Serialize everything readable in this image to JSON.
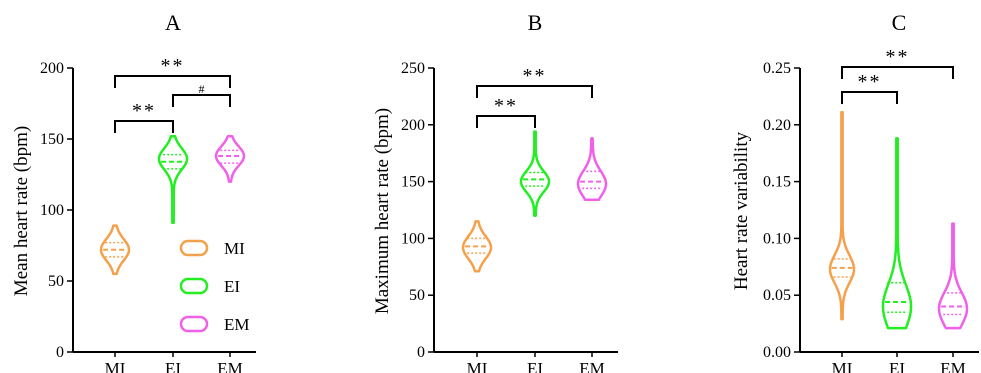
{
  "colors": {
    "MI": "#F5A04A",
    "EI": "#22EE22",
    "EM": "#F060E8",
    "axis": "#000000"
  },
  "legend": [
    {
      "label": "MI",
      "color": "#F5A04A"
    },
    {
      "label": "EI",
      "color": "#22EE22"
    },
    {
      "label": "EM",
      "color": "#F060E8"
    }
  ],
  "chart_data": [
    {
      "type": "violin",
      "title": "A",
      "ylabel": "Mean heart rate (bpm)",
      "ylim": [
        0,
        200
      ],
      "yticks": [
        0,
        50,
        100,
        150,
        200
      ],
      "ytick_labels": [
        "0",
        "50",
        "100",
        "150",
        "200"
      ],
      "categories": [
        "MI",
        "EI",
        "EM"
      ],
      "series": [
        {
          "name": "MI",
          "min": 55,
          "max": 89,
          "q1": 67,
          "median": 72,
          "q3": 77,
          "mode": 72
        },
        {
          "name": "EI",
          "min": 91,
          "max": 152,
          "q1": 129,
          "median": 134,
          "q3": 139,
          "mode": 136
        },
        {
          "name": "EM",
          "min": 120,
          "max": 152,
          "q1": 133,
          "median": 138,
          "q3": 142,
          "mode": 138
        }
      ],
      "brackets": [
        {
          "from": "MI",
          "to": "EI",
          "label": "**"
        },
        {
          "from": "EI",
          "to": "EM",
          "label": "#"
        },
        {
          "from": "MI",
          "to": "EM",
          "label": "**"
        }
      ]
    },
    {
      "type": "violin",
      "title": "B",
      "ylabel": "Maximum heart rate (bpm)",
      "ylim": [
        0,
        250
      ],
      "yticks": [
        0,
        50,
        100,
        150,
        200,
        250
      ],
      "ytick_labels": [
        "0",
        "50",
        "100",
        "150",
        "200",
        "250"
      ],
      "categories": [
        "MI",
        "EI",
        "EM"
      ],
      "series": [
        {
          "name": "MI",
          "min": 71,
          "max": 115,
          "q1": 87,
          "median": 93,
          "q3": 100,
          "mode": 92
        },
        {
          "name": "EI",
          "min": 120,
          "max": 194,
          "q1": 146,
          "median": 152,
          "q3": 158,
          "mode": 150
        },
        {
          "name": "EM",
          "min": 134,
          "max": 188,
          "q1": 144,
          "median": 150,
          "q3": 159,
          "mode": 148
        }
      ],
      "brackets": [
        {
          "from": "MI",
          "to": "EI",
          "label": "**"
        },
        {
          "from": "MI",
          "to": "EM",
          "label": "**"
        }
      ]
    },
    {
      "type": "violin",
      "title": "C",
      "ylabel": "Heart rate variability",
      "ylim": [
        0,
        0.25
      ],
      "yticks": [
        0,
        0.05,
        0.1,
        0.15,
        0.2,
        0.25
      ],
      "ytick_labels": [
        "0.00",
        "0.05",
        "0.10",
        "0.15",
        "0.20",
        "0.25"
      ],
      "categories": [
        "MI",
        "EI",
        "EM"
      ],
      "series": [
        {
          "name": "MI",
          "min": 0.029,
          "max": 0.211,
          "q1": 0.066,
          "median": 0.074,
          "q3": 0.082,
          "mode": 0.073
        },
        {
          "name": "EI",
          "min": 0.021,
          "max": 0.188,
          "q1": 0.035,
          "median": 0.044,
          "q3": 0.061,
          "mode": 0.04
        },
        {
          "name": "EM",
          "min": 0.021,
          "max": 0.113,
          "q1": 0.033,
          "median": 0.04,
          "q3": 0.052,
          "mode": 0.038
        }
      ],
      "brackets": [
        {
          "from": "MI",
          "to": "EI",
          "label": "**"
        },
        {
          "from": "MI",
          "to": "EM",
          "label": "**"
        }
      ]
    }
  ]
}
